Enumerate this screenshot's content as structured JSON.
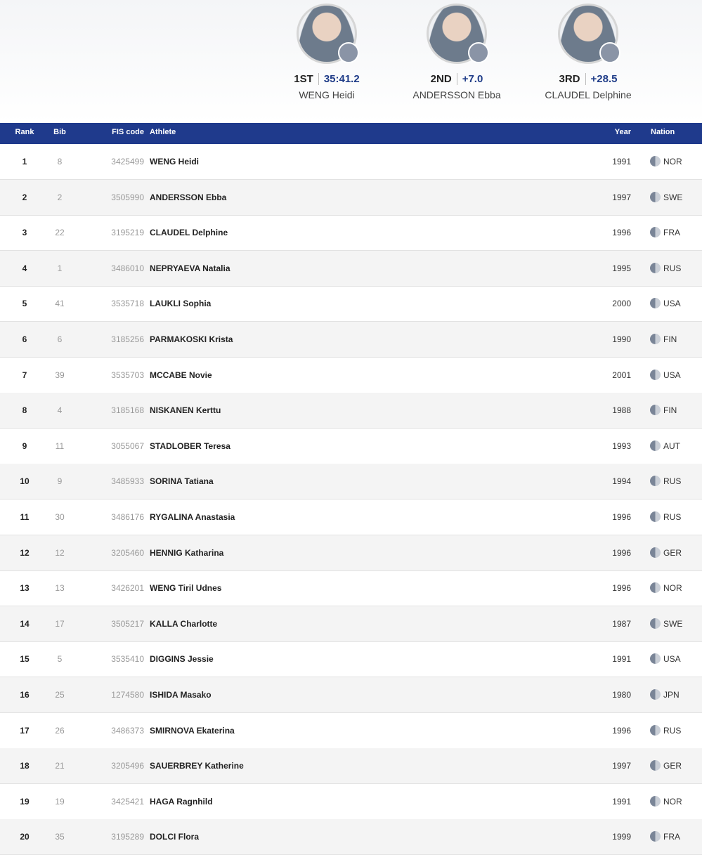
{
  "podium": [
    {
      "place": "1ST",
      "time": "35:41.2",
      "name": "WENG Heidi"
    },
    {
      "place": "2ND",
      "time": "+7.0",
      "name": "ANDERSSON Ebba"
    },
    {
      "place": "3RD",
      "time": "+28.5",
      "name": "CLAUDEL Delphine"
    }
  ],
  "table": {
    "columns": [
      "Rank",
      "Bib",
      "FIS code",
      "Athlete",
      "Year",
      "Nation"
    ],
    "rows": [
      [
        "1",
        "8",
        "3425499",
        "WENG Heidi",
        "1991",
        "NOR"
      ],
      [
        "2",
        "2",
        "3505990",
        "ANDERSSON Ebba",
        "1997",
        "SWE"
      ],
      [
        "3",
        "22",
        "3195219",
        "CLAUDEL Delphine",
        "1996",
        "FRA"
      ],
      [
        "4",
        "1",
        "3486010",
        "NEPRYAEVA Natalia",
        "1995",
        "RUS"
      ],
      [
        "5",
        "41",
        "3535718",
        "LAUKLI Sophia",
        "2000",
        "USA"
      ],
      [
        "6",
        "6",
        "3185256",
        "PARMAKOSKI Krista",
        "1990",
        "FIN"
      ],
      [
        "7",
        "39",
        "3535703",
        "MCCABE Novie",
        "2001",
        "USA"
      ],
      [
        "8",
        "4",
        "3185168",
        "NISKANEN Kerttu",
        "1988",
        "FIN"
      ],
      [
        "9",
        "11",
        "3055067",
        "STADLOBER Teresa",
        "1993",
        "AUT"
      ],
      [
        "10",
        "9",
        "3485933",
        "SORINA Tatiana",
        "1994",
        "RUS"
      ],
      [
        "11",
        "30",
        "3486176",
        "RYGALINA Anastasia",
        "1996",
        "RUS"
      ],
      [
        "12",
        "12",
        "3205460",
        "HENNIG Katharina",
        "1996",
        "GER"
      ],
      [
        "13",
        "13",
        "3426201",
        "WENG Tiril Udnes",
        "1996",
        "NOR"
      ],
      [
        "14",
        "17",
        "3505217",
        "KALLA Charlotte",
        "1987",
        "SWE"
      ],
      [
        "15",
        "5",
        "3535410",
        "DIGGINS Jessie",
        "1991",
        "USA"
      ],
      [
        "16",
        "25",
        "1274580",
        "ISHIDA Masako",
        "1980",
        "JPN"
      ],
      [
        "17",
        "26",
        "3486373",
        "SMIRNOVA Ekaterina",
        "1996",
        "RUS"
      ],
      [
        "18",
        "21",
        "3205496",
        "SAUERBREY Katherine",
        "1997",
        "GER"
      ],
      [
        "19",
        "19",
        "3425421",
        "HAGA Ragnhild",
        "1991",
        "NOR"
      ],
      [
        "20",
        "35",
        "3195289",
        "DOLCI Flora",
        "1999",
        "FRA"
      ]
    ]
  }
}
